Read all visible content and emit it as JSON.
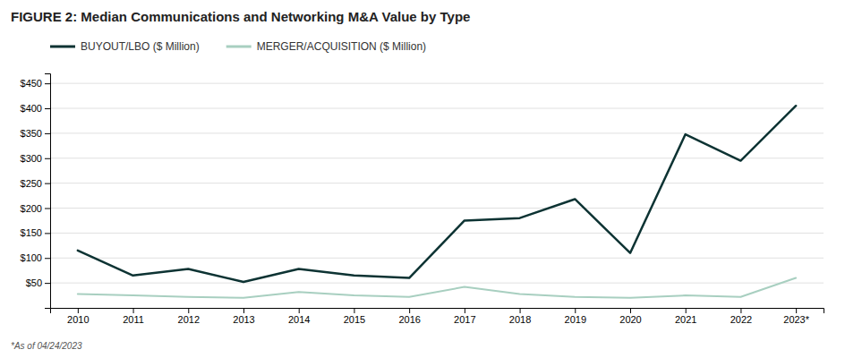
{
  "chart_data": {
    "type": "line",
    "title": "FIGURE 2:  Median Communications and Networking M&A Value by Type",
    "categories": [
      "2010",
      "2011",
      "2012",
      "2013",
      "2014",
      "2015",
      "2016",
      "2017",
      "2018",
      "2019",
      "2020",
      "2021",
      "2022",
      "2023*"
    ],
    "series": [
      {
        "name": "BUYOUT/LBO ($ Million)",
        "color": "#0d3333",
        "values": [
          115,
          65,
          78,
          52,
          78,
          65,
          60,
          175,
          180,
          218,
          110,
          348,
          295,
          405
        ]
      },
      {
        "name": "MERGER/ACQUISITION ($ Million)",
        "color": "#a8cfc0",
        "values": [
          28,
          25,
          22,
          20,
          32,
          25,
          22,
          42,
          28,
          22,
          20,
          25,
          22,
          60
        ]
      }
    ],
    "ylim": [
      0,
      470
    ],
    "yticks": [
      {
        "value": 50,
        "label": "$50"
      },
      {
        "value": 100,
        "label": "$100"
      },
      {
        "value": 150,
        "label": "$150"
      },
      {
        "value": 200,
        "label": "$200"
      },
      {
        "value": 250,
        "label": "$250"
      },
      {
        "value": 300,
        "label": "$300"
      },
      {
        "value": 350,
        "label": "$350"
      },
      {
        "value": 400,
        "label": "$400"
      },
      {
        "value": 450,
        "label": "$450"
      }
    ],
    "grid": true,
    "annotations": [
      "*As of 04/24/2023"
    ]
  }
}
